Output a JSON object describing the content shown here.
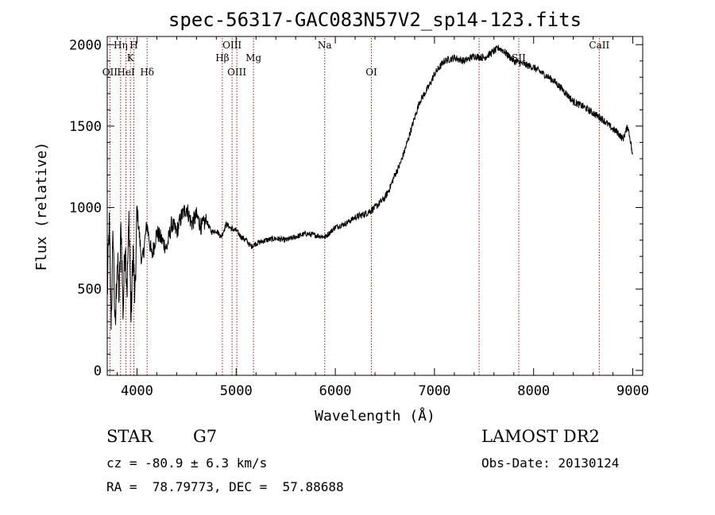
{
  "chart_data": {
    "type": "line",
    "title": "spec-56317-GAC083N57V2_sp14-123.fits",
    "xlabel": "Wavelength (Å)",
    "ylabel": "Flux (relative)",
    "xlim": [
      3700,
      9100
    ],
    "ylim": [
      -30,
      2050
    ],
    "xticks": [
      4000,
      5000,
      6000,
      7000,
      8000,
      9000
    ],
    "yticks": [
      0,
      500,
      1000,
      1500,
      2000
    ],
    "grid": false,
    "series": [
      {
        "color": "#000000",
        "x": [
          3700,
          3720,
          3740,
          3760,
          3780,
          3800,
          3820,
          3840,
          3860,
          3880,
          3900,
          3920,
          3940,
          3960,
          3980,
          4000,
          4050,
          4100,
          4150,
          4200,
          4250,
          4300,
          4350,
          4400,
          4450,
          4500,
          4550,
          4600,
          4650,
          4700,
          4750,
          4800,
          4850,
          4900,
          4950,
          5000,
          5050,
          5100,
          5150,
          5200,
          5300,
          5400,
          5500,
          5600,
          5700,
          5800,
          5900,
          6000,
          6100,
          6200,
          6300,
          6400,
          6500,
          6550,
          6600,
          6650,
          6700,
          6750,
          6800,
          6850,
          6900,
          6950,
          7000,
          7050,
          7100,
          7200,
          7300,
          7400,
          7500,
          7600,
          7650,
          7700,
          7800,
          7900,
          8000,
          8100,
          8200,
          8300,
          8400,
          8500,
          8600,
          8700,
          8800,
          8850,
          8900,
          8950,
          8980,
          9000
        ],
        "y": [
          450,
          900,
          300,
          850,
          200,
          700,
          450,
          900,
          350,
          800,
          500,
          950,
          300,
          750,
          400,
          1000,
          650,
          900,
          700,
          850,
          800,
          750,
          900,
          850,
          950,
          1000,
          900,
          950,
          880,
          920,
          850,
          860,
          820,
          900,
          870,
          860,
          820,
          800,
          760,
          780,
          800,
          810,
          800,
          820,
          840,
          830,
          820,
          880,
          900,
          940,
          960,
          1000,
          1060,
          1120,
          1200,
          1260,
          1350,
          1450,
          1550,
          1650,
          1700,
          1750,
          1820,
          1860,
          1900,
          1920,
          1900,
          1930,
          1920,
          1960,
          1980,
          1960,
          1900,
          1880,
          1860,
          1820,
          1780,
          1720,
          1650,
          1620,
          1580,
          1540,
          1480,
          1460,
          1420,
          1500,
          1400,
          1300
        ]
      }
    ],
    "lines": [
      {
        "label": "OII",
        "wavelength": 3727,
        "row": 3
      },
      {
        "label": "Hη",
        "wavelength": 3835,
        "row": 1
      },
      {
        "label": "HeI",
        "wavelength": 3889,
        "row": 3
      },
      {
        "label": "K",
        "wavelength": 3934,
        "row": 2
      },
      {
        "label": "H",
        "wavelength": 3968,
        "row": 1
      },
      {
        "label": "Hδ",
        "wavelength": 4102,
        "row": 3
      },
      {
        "label": "Hβ",
        "wavelength": 4861,
        "row": 2
      },
      {
        "label": "OIII",
        "wavelength": 4959,
        "row": 1
      },
      {
        "label": "OIII",
        "wavelength": 5007,
        "row": 3
      },
      {
        "label": "Mg",
        "wavelength": 5175,
        "row": 2
      },
      {
        "label": "Na",
        "wavelength": 5893,
        "row": 1
      },
      {
        "label": "OI",
        "wavelength": 6364,
        "row": 3
      },
      {
        "label": "",
        "wavelength": 7450,
        "row": 0
      },
      {
        "label": "SII",
        "wavelength": 7850,
        "row": 2
      },
      {
        "label": "CaII",
        "wavelength": 8662,
        "row": 1
      }
    ]
  },
  "footer": {
    "object_type": "STAR",
    "subclass": "G7",
    "cz": "cz = -80.9 ± 6.3 km/s",
    "coords": "RA =  78.79773, DEC =  57.88688",
    "survey": "LAMOST DR2",
    "obs_date": "Obs-Date: 20130124"
  }
}
